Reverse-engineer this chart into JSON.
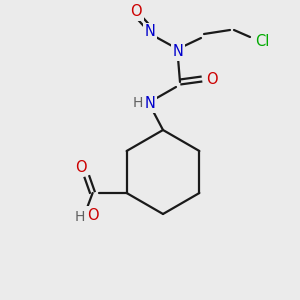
{
  "bg": "#ebebeb",
  "bond_color": "#1a1a1a",
  "colors": {
    "O": "#cc0000",
    "N": "#0000cc",
    "Cl": "#00aa00",
    "H": "#606060",
    "C": "#1a1a1a"
  },
  "figsize": [
    3.0,
    3.0
  ],
  "dpi": 100
}
